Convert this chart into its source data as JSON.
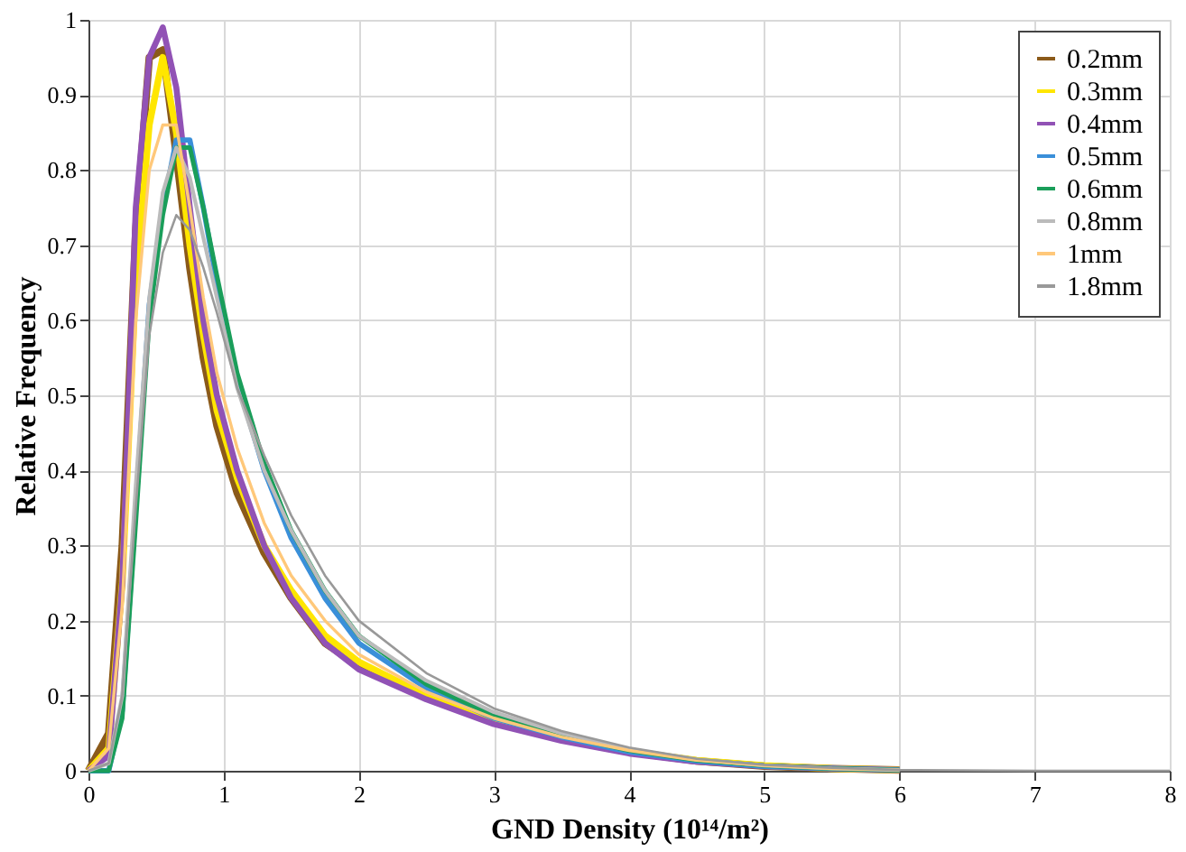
{
  "chart_data": {
    "type": "line",
    "xlabel": "GND Density (10¹⁴/m²)",
    "ylabel": "Relative Frequency",
    "x": [
      0,
      0.15,
      0.25,
      0.35,
      0.45,
      0.55,
      0.65,
      0.75,
      0.85,
      0.95,
      1.1,
      1.3,
      1.5,
      1.75,
      2,
      2.5,
      3,
      3.5,
      4,
      4.5,
      5,
      5.5,
      6,
      7,
      8
    ],
    "xlim": [
      0,
      8
    ],
    "xticks": [
      0,
      1,
      2,
      3,
      4,
      5,
      6,
      7,
      8
    ],
    "ylim": [
      0,
      1
    ],
    "yticks": [
      0,
      0.1,
      0.2,
      0.3,
      0.4,
      0.5,
      0.6,
      0.7,
      0.8,
      0.9,
      1
    ],
    "grid": true,
    "legend": "top right",
    "marker": "none",
    "line_style": "solid",
    "series": [
      {
        "name": "0.2mm",
        "color": "#8b5a1a",
        "values": [
          0,
          0.05,
          0.3,
          0.72,
          0.95,
          0.96,
          0.82,
          0.67,
          0.55,
          0.46,
          0.37,
          0.29,
          0.23,
          0.17,
          0.14,
          0.098,
          0.065,
          0.042,
          0.025,
          0.013,
          0.006,
          0.003,
          0.001,
          null,
          null
        ]
      },
      {
        "name": "0.3mm",
        "color": "#ffe600",
        "values": [
          0,
          0.03,
          0.25,
          0.65,
          0.86,
          0.95,
          0.85,
          0.7,
          0.58,
          0.48,
          0.39,
          0.3,
          0.24,
          0.18,
          0.145,
          0.1,
          0.068,
          0.044,
          0.026,
          0.014,
          0.007,
          0.003,
          0.001,
          null,
          null
        ]
      },
      {
        "name": "0.4mm",
        "color": "#9152b5",
        "values": [
          0,
          0.02,
          0.25,
          0.75,
          0.95,
          0.99,
          0.91,
          0.75,
          0.6,
          0.5,
          0.4,
          0.3,
          0.23,
          0.17,
          0.135,
          0.095,
          0.062,
          0.04,
          0.023,
          0.012,
          0.006,
          0.003,
          0.001,
          null,
          null
        ]
      },
      {
        "name": "0.5mm",
        "color": "#3a8fd9",
        "values": [
          0,
          0,
          0.08,
          0.35,
          0.62,
          0.75,
          0.84,
          0.84,
          0.75,
          0.65,
          0.52,
          0.4,
          0.31,
          0.23,
          0.17,
          0.11,
          0.07,
          0.045,
          0.025,
          0.013,
          0.006,
          0.003,
          0.001,
          null,
          null
        ]
      },
      {
        "name": "0.6mm",
        "color": "#1a9e5a",
        "values": [
          0,
          0,
          0.07,
          0.33,
          0.6,
          0.74,
          0.83,
          0.83,
          0.75,
          0.66,
          0.53,
          0.41,
          0.32,
          0.24,
          0.18,
          0.115,
          0.073,
          0.047,
          0.027,
          0.014,
          0.007,
          0.003,
          0.001,
          null,
          null
        ]
      },
      {
        "name": "0.8mm",
        "color": "#bbbbbb",
        "values": [
          0,
          0.01,
          0.1,
          0.38,
          0.63,
          0.77,
          0.83,
          0.79,
          0.71,
          0.63,
          0.51,
          0.4,
          0.32,
          0.24,
          0.18,
          0.12,
          0.078,
          0.05,
          0.029,
          0.015,
          0.007,
          0.003,
          0.001,
          null,
          null
        ]
      },
      {
        "name": "1mm",
        "color": "#ffc87a",
        "values": [
          0,
          0.03,
          0.22,
          0.6,
          0.8,
          0.86,
          0.86,
          0.75,
          0.63,
          0.53,
          0.43,
          0.33,
          0.26,
          0.2,
          0.155,
          0.105,
          0.07,
          0.045,
          0.027,
          0.014,
          0.007,
          0.003,
          0.001,
          null,
          null
        ]
      },
      {
        "name": "1.8mm",
        "color": "#999999",
        "values": [
          0,
          0.01,
          0.1,
          0.35,
          0.58,
          0.69,
          0.74,
          0.72,
          0.67,
          0.61,
          0.51,
          0.42,
          0.34,
          0.26,
          0.2,
          0.13,
          0.083,
          0.053,
          0.031,
          0.016,
          0.008,
          0.004,
          0.001,
          0,
          0
        ]
      }
    ]
  }
}
